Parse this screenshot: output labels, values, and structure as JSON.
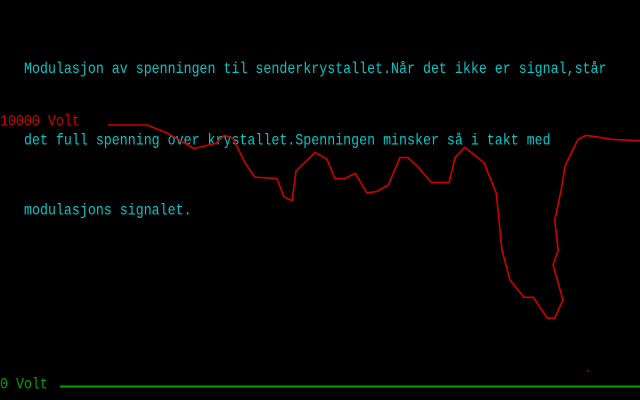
{
  "intro_text": [
    "Modulasjon av spenningen til senderkrystallet.Når det ikke er signal,står",
    "det full spenning over krystallet.Spenningen minsker så i takt med",
    "modulasjons signalet."
  ],
  "colors": {
    "text": "#00c8c8",
    "trace": "#d00000",
    "baseline": "#00a000",
    "background": "#000000"
  },
  "chart_data": {
    "type": "line",
    "title": "",
    "xlabel": "",
    "ylabel": "",
    "y_labels": {
      "top": "10000 Volt",
      "bottom": "0 Volt"
    },
    "ylim": [
      0,
      10000
    ],
    "xlim": [
      0,
      100
    ],
    "grid": false,
    "series": [
      {
        "x": [
          8.3,
          15,
          18.4,
          23.1,
          26.9,
          28.3,
          29.8,
          31.9,
          33.6,
          37.4,
          38.6,
          40,
          40.7,
          44,
          46,
          47.4,
          49.1,
          50.9,
          52.9,
          54.5,
          56.6,
          58.6,
          60,
          61.7,
          64,
          67.1,
          68.1,
          69.8,
          73.1,
          75.2,
          76.2,
          77.6,
          80,
          81.6,
          84,
          85.3,
          86.7,
          85,
          85.9,
          85.3,
          86.4,
          87.1,
          89.3,
          90.7,
          92.4,
          95.2,
          100
        ],
        "y": [
          10000,
          10000,
          9700,
          9100,
          9300,
          9600,
          9500,
          8550,
          8000,
          7950,
          7250,
          7100,
          8250,
          8950,
          8700,
          7950,
          7950,
          8150,
          7400,
          7450,
          7700,
          8750,
          8750,
          8400,
          7800,
          7800,
          8750,
          9150,
          8550,
          7400,
          5200,
          4050,
          3400,
          3400,
          2600,
          2600,
          3300,
          4650,
          5200,
          6350,
          7500,
          8450,
          9450,
          9600,
          9550,
          9450,
          9400
        ]
      }
    ]
  }
}
